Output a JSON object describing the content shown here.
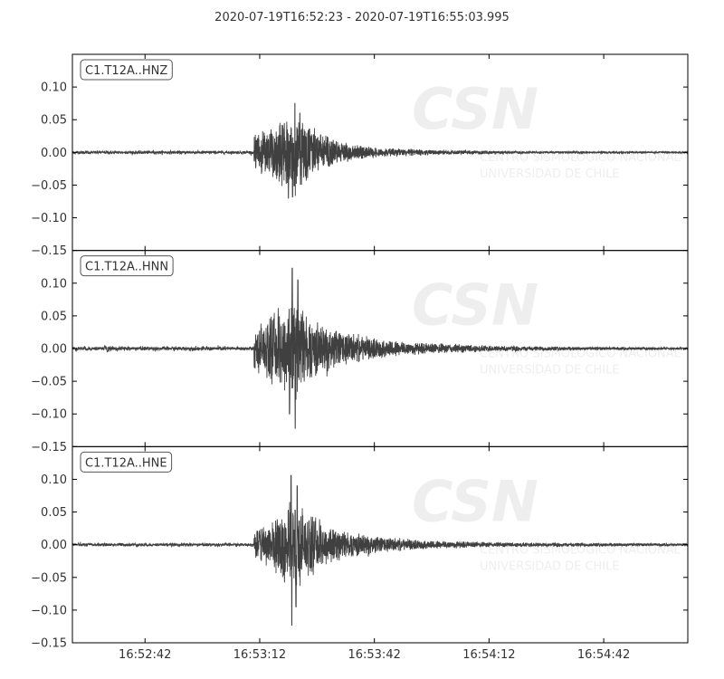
{
  "chart_data": {
    "type": "line",
    "title": "2020-07-19T16:52:23  -  2020-07-19T16:55:03.995",
    "start_time": "16:52:23",
    "end_time": "16:55:03.995",
    "xticks": [
      "16:52:42",
      "16:53:12",
      "16:53:42",
      "16:54:12",
      "16:54:42"
    ],
    "yticks": [
      "0.10",
      "0.05",
      "0.00",
      "−0.05",
      "−0.10",
      "−0.15"
    ],
    "ylim": [
      -0.15,
      0.15
    ],
    "grid": false,
    "watermark": {
      "big": "CSN",
      "line1": "CENTRO SISMOLÓGICO NACIONAL",
      "line2": "UNIVERSIDAD DE CHILE"
    },
    "series": [
      {
        "name": "C1.T12A..HNZ",
        "color": "#404040",
        "onset_s": 47.5,
        "pre_noise": 0.002,
        "envelope": [
          [
            47.5,
            0.03
          ],
          [
            49,
            0.035
          ],
          [
            52,
            0.04
          ],
          [
            55,
            0.055
          ],
          [
            58,
            0.065
          ],
          [
            61,
            0.05
          ],
          [
            64,
            0.035
          ],
          [
            67,
            0.025
          ],
          [
            72,
            0.015
          ],
          [
            80,
            0.008
          ],
          [
            95,
            0.004
          ],
          [
            120,
            0.002
          ],
          [
            161,
            0.0015
          ]
        ],
        "peaks": [
          [
            58.2,
            0.075
          ],
          [
            56.5,
            -0.07
          ],
          [
            57.6,
            -0.068
          ],
          [
            59.5,
            0.06
          ]
        ]
      },
      {
        "name": "C1.T12A..HNN",
        "color": "#404040",
        "onset_s": 47.5,
        "pre_noise": 0.0025,
        "pre_events": [
          [
            8.5,
            0.005
          ],
          [
            9.2,
            -0.006
          ]
        ],
        "envelope": [
          [
            47.5,
            0.035
          ],
          [
            50,
            0.045
          ],
          [
            53,
            0.06
          ],
          [
            56,
            0.08
          ],
          [
            58.5,
            0.09
          ],
          [
            61,
            0.06
          ],
          [
            65,
            0.04
          ],
          [
            70,
            0.03
          ],
          [
            78,
            0.018
          ],
          [
            90,
            0.01
          ],
          [
            110,
            0.005
          ],
          [
            130,
            0.003
          ],
          [
            161,
            0.002
          ]
        ],
        "peaks": [
          [
            57.5,
            0.123
          ],
          [
            58.3,
            -0.122
          ],
          [
            56.8,
            -0.1
          ],
          [
            59.0,
            0.105
          ]
        ]
      },
      {
        "name": "C1.T12A..HNE",
        "color": "#404040",
        "onset_s": 47.5,
        "pre_noise": 0.002,
        "envelope": [
          [
            47.5,
            0.025
          ],
          [
            50,
            0.03
          ],
          [
            53,
            0.045
          ],
          [
            56,
            0.07
          ],
          [
            58.5,
            0.075
          ],
          [
            61,
            0.055
          ],
          [
            65,
            0.04
          ],
          [
            70,
            0.025
          ],
          [
            78,
            0.015
          ],
          [
            90,
            0.008
          ],
          [
            110,
            0.004
          ],
          [
            161,
            0.002
          ]
        ],
        "peaks": [
          [
            57.2,
            0.106
          ],
          [
            57.4,
            -0.123
          ],
          [
            58.5,
            -0.095
          ],
          [
            58.8,
            0.09
          ]
        ]
      }
    ]
  }
}
